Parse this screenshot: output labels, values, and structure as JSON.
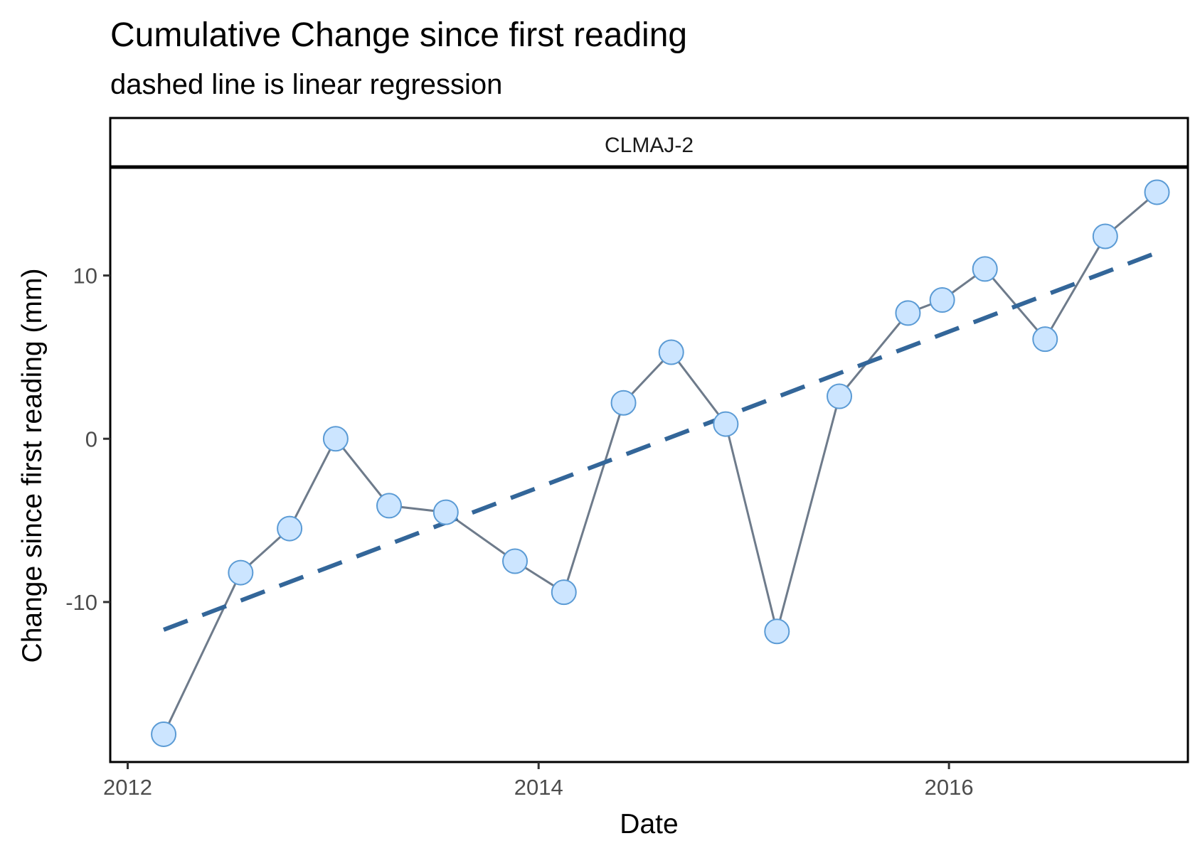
{
  "chart_data": {
    "type": "line",
    "title": "Cumulative Change since first reading",
    "subtitle": "dashed line is linear regression",
    "facet_label": "CLMAJ-2",
    "xlabel": "Date",
    "ylabel": "Change since first reading (mm)",
    "xlim": [
      "2011-12-01",
      "2017-03-01"
    ],
    "ylim": [
      -19.8,
      16.6
    ],
    "x_ticks": [
      {
        "value": "2012-01-01",
        "label": "2012"
      },
      {
        "value": "2014-01-01",
        "label": "2014"
      },
      {
        "value": "2016-01-01",
        "label": "2016"
      }
    ],
    "y_ticks": [
      {
        "value": -10,
        "label": "-10"
      },
      {
        "value": 0,
        "label": "0"
      },
      {
        "value": 10,
        "label": "10"
      }
    ],
    "grid": false,
    "legend": "none",
    "series": [
      {
        "x": [
          "2012-03-05",
          "2012-07-20",
          "2012-10-15",
          "2013-01-05",
          "2013-04-10",
          "2013-07-20",
          "2013-11-20",
          "2014-02-15",
          "2014-06-01",
          "2014-08-25",
          "2014-11-30",
          "2015-03-01",
          "2015-06-20",
          "2015-10-20",
          "2015-12-20",
          "2016-03-05",
          "2016-06-20",
          "2016-10-05",
          "2017-01-05"
        ],
        "y": [
          -18.1,
          -8.2,
          -5.5,
          0.0,
          -4.1,
          -4.5,
          -7.5,
          -9.4,
          2.2,
          5.3,
          0.9,
          -11.8,
          2.6,
          7.7,
          8.5,
          10.4,
          6.1,
          12.4,
          15.1
        ]
      },
      {
        "x": [
          "2012-03-05",
          "2017-01-05"
        ],
        "y": [
          -11.7,
          11.4
        ]
      }
    ],
    "colors": {
      "line": "#6e7b8b",
      "point_fill": "#cce5ff",
      "point_stroke": "#5b9bd5",
      "regression": "#336699",
      "axis": "#000000",
      "tick_label": "#4d4d4d"
    }
  }
}
